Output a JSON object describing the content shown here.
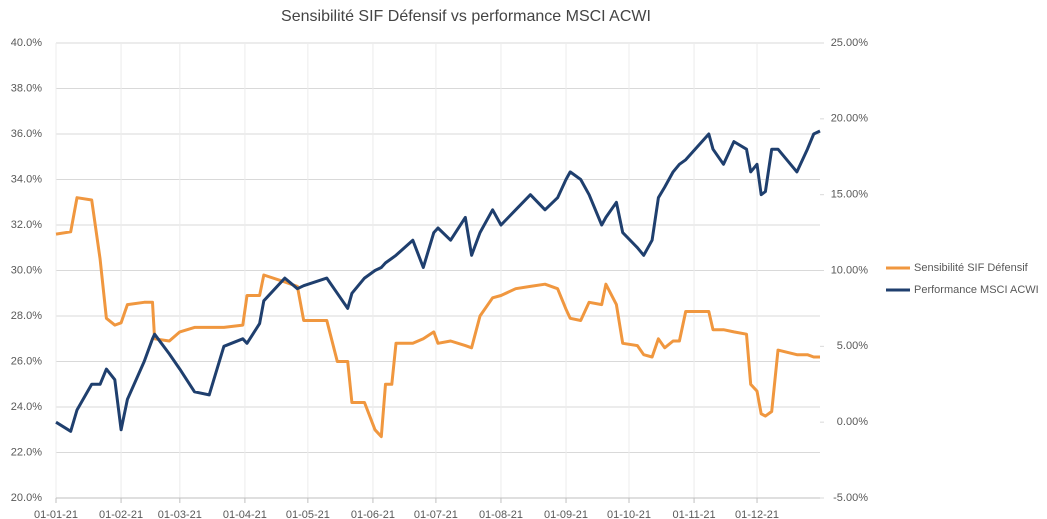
{
  "chart_data": {
    "type": "line",
    "title": "Sensibilité SIF Défensif vs performance MSCI ACWI",
    "x": [
      "01-01-21",
      "08-01-21",
      "11-01-21",
      "18-01-21",
      "22-01-21",
      "25-01-21",
      "29-01-21",
      "01-02-21",
      "04-02-21",
      "12-02-21",
      "16-02-21",
      "17-02-21",
      "24-02-21",
      "01-03-21",
      "08-03-21",
      "15-03-21",
      "22-03-21",
      "31-03-21",
      "02-04-21",
      "08-04-21",
      "10-04-21",
      "20-04-21",
      "26-04-21",
      "29-04-21",
      "10-05-21",
      "15-05-21",
      "20-05-21",
      "22-05-21",
      "28-05-21",
      "02-06-21",
      "05-06-21",
      "07-06-21",
      "10-06-21",
      "12-06-21",
      "20-06-21",
      "25-06-21",
      "30-06-21",
      "02-07-21",
      "08-07-21",
      "15-07-21",
      "18-07-21",
      "22-07-21",
      "28-07-21",
      "01-08-21",
      "08-08-21",
      "15-08-21",
      "22-08-21",
      "28-08-21",
      "01-09-21",
      "03-09-21",
      "08-09-21",
      "12-09-21",
      "18-09-21",
      "20-09-21",
      "25-09-21",
      "28-09-21",
      "05-10-21",
      "08-10-21",
      "12-10-21",
      "15-10-21",
      "18-10-21",
      "22-10-21",
      "25-10-21",
      "28-10-21",
      "08-11-21",
      "10-11-21",
      "15-11-21",
      "20-11-21",
      "26-11-21",
      "28-11-21",
      "01-12-21",
      "03-12-21",
      "05-12-21",
      "08-12-21",
      "11-12-21",
      "20-12-21",
      "25-12-21",
      "28-12-21",
      "31-12-21"
    ],
    "series": [
      {
        "name": "Sensibilité SIF Défensif",
        "color": "#f0973f",
        "axis": "y",
        "values": [
          31.6,
          31.7,
          33.2,
          33.1,
          30.5,
          27.9,
          27.6,
          27.7,
          28.5,
          28.6,
          28.6,
          27.0,
          26.9,
          27.3,
          27.5,
          27.5,
          27.5,
          27.6,
          28.9,
          28.9,
          29.8,
          29.5,
          29.3,
          27.8,
          27.8,
          26.0,
          26.0,
          24.2,
          24.2,
          23.0,
          22.7,
          25.0,
          25.0,
          26.8,
          26.8,
          27.0,
          27.3,
          26.8,
          26.9,
          26.7,
          26.6,
          28.0,
          28.8,
          28.9,
          29.2,
          29.3,
          29.4,
          29.2,
          28.3,
          27.9,
          27.8,
          28.6,
          28.5,
          29.4,
          28.5,
          26.8,
          26.7,
          26.3,
          26.2,
          27.0,
          26.6,
          26.9,
          26.9,
          28.2,
          28.2,
          27.4,
          27.4,
          27.3,
          27.2,
          25.0,
          24.7,
          23.7,
          23.6,
          23.8,
          26.5,
          26.3,
          26.3,
          26.2,
          26.2
        ]
      },
      {
        "name": "Performance MSCI ACWI",
        "color": "#1f3f6e",
        "axis": "y2",
        "values": [
          0.0,
          -0.6,
          0.8,
          2.5,
          2.5,
          3.5,
          2.8,
          -0.5,
          1.5,
          4.0,
          5.5,
          5.8,
          4.5,
          3.5,
          2.0,
          1.8,
          5.0,
          5.5,
          5.2,
          6.5,
          8.0,
          9.5,
          8.8,
          9.0,
          9.5,
          8.5,
          7.5,
          8.5,
          9.5,
          10.0,
          10.2,
          10.5,
          10.8,
          11.0,
          12.0,
          10.2,
          12.5,
          12.8,
          12.0,
          13.5,
          11.0,
          12.5,
          14.0,
          13.0,
          14.0,
          15.0,
          14.0,
          14.8,
          16.0,
          16.5,
          16.0,
          15.0,
          13.0,
          13.5,
          14.5,
          12.5,
          11.5,
          11.0,
          12.0,
          14.8,
          15.5,
          16.5,
          17.0,
          17.3,
          19.0,
          18.0,
          17.0,
          18.5,
          18.0,
          16.5,
          17.0,
          15.0,
          15.2,
          18.0,
          18.0,
          16.5,
          18.0,
          19.0,
          19.2
        ]
      }
    ],
    "xlim": [
      "01-01-21",
      "31-12-21"
    ],
    "xticks": [
      "01-01-21",
      "01-02-21",
      "01-03-21",
      "01-04-21",
      "01-05-21",
      "01-06-21",
      "01-07-21",
      "01-08-21",
      "01-09-21",
      "01-10-21",
      "01-11-21",
      "01-12-21"
    ],
    "ylim": [
      20,
      40
    ],
    "yticks": [
      {
        "value": 20,
        "label": "20.0%"
      },
      {
        "value": 22,
        "label": "22.0%"
      },
      {
        "value": 24,
        "label": "24.0%"
      },
      {
        "value": 26,
        "label": "26.0%"
      },
      {
        "value": 28,
        "label": "28.0%"
      },
      {
        "value": 30,
        "label": "30.0%"
      },
      {
        "value": 32,
        "label": "32.0%"
      },
      {
        "value": 34,
        "label": "34.0%"
      },
      {
        "value": 36,
        "label": "36.0%"
      },
      {
        "value": 38,
        "label": "38.0%"
      },
      {
        "value": 40,
        "label": "40.0%"
      }
    ],
    "y2lim": [
      -5,
      25
    ],
    "y2ticks": [
      {
        "value": -5,
        "label": "-5.00%"
      },
      {
        "value": 0,
        "label": "0.00%"
      },
      {
        "value": 5,
        "label": "5.00%"
      },
      {
        "value": 10,
        "label": "10.00%"
      },
      {
        "value": 15,
        "label": "15.00%"
      },
      {
        "value": 20,
        "label": "20.00%"
      },
      {
        "value": 25,
        "label": "25.00%"
      }
    ],
    "grid": true,
    "legend": "right"
  }
}
